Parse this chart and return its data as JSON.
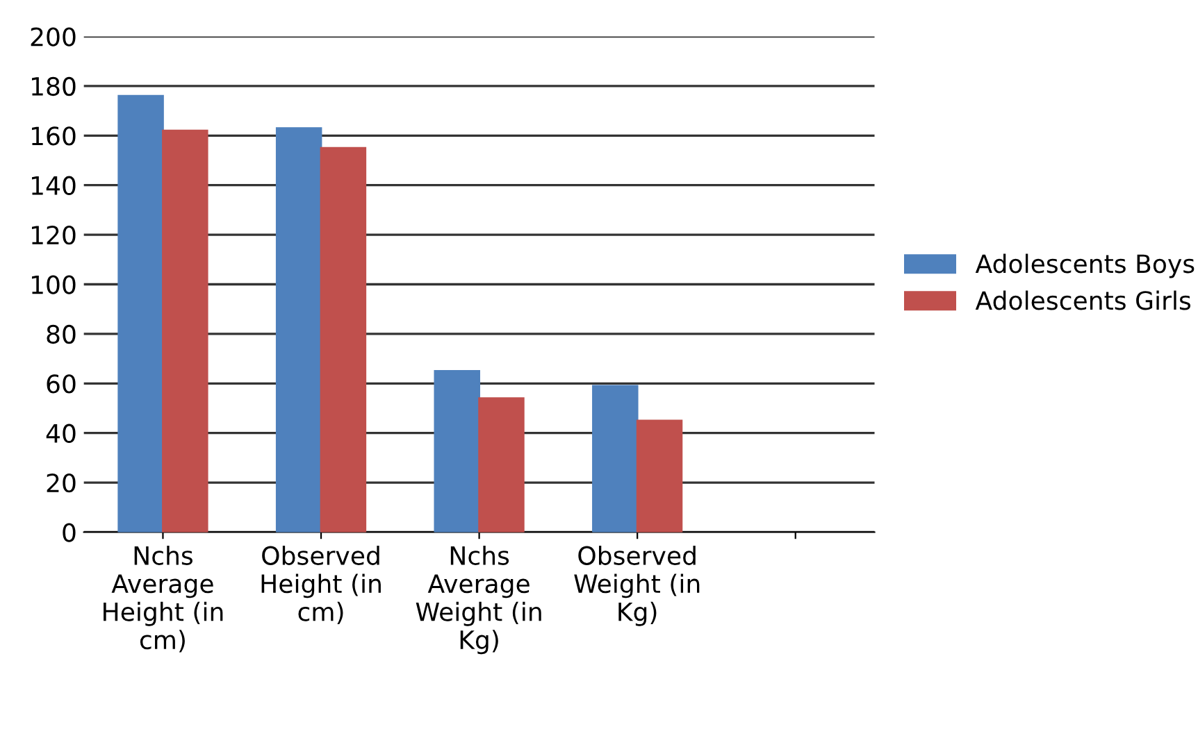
{
  "chart_data": {
    "type": "bar",
    "categories": [
      "Nchs Average Height (in cm)",
      "Observed Height (in cm)",
      "Nchs Average Weight (in Kg)",
      "Observed Weight (in Kg)",
      null
    ],
    "series": [
      {
        "name": "Adolescents Boys",
        "color": "#4f81bd",
        "values": [
          176,
          163,
          65,
          59,
          null
        ]
      },
      {
        "name": "Adolescents Girls",
        "color": "#c0504d",
        "values": [
          162,
          155,
          54,
          45,
          null
        ]
      }
    ],
    "ylim": [
      0,
      200
    ],
    "yticks": [
      0,
      20,
      40,
      60,
      80,
      100,
      120,
      140,
      160,
      180,
      200
    ],
    "grid": "y",
    "legend": "right"
  }
}
